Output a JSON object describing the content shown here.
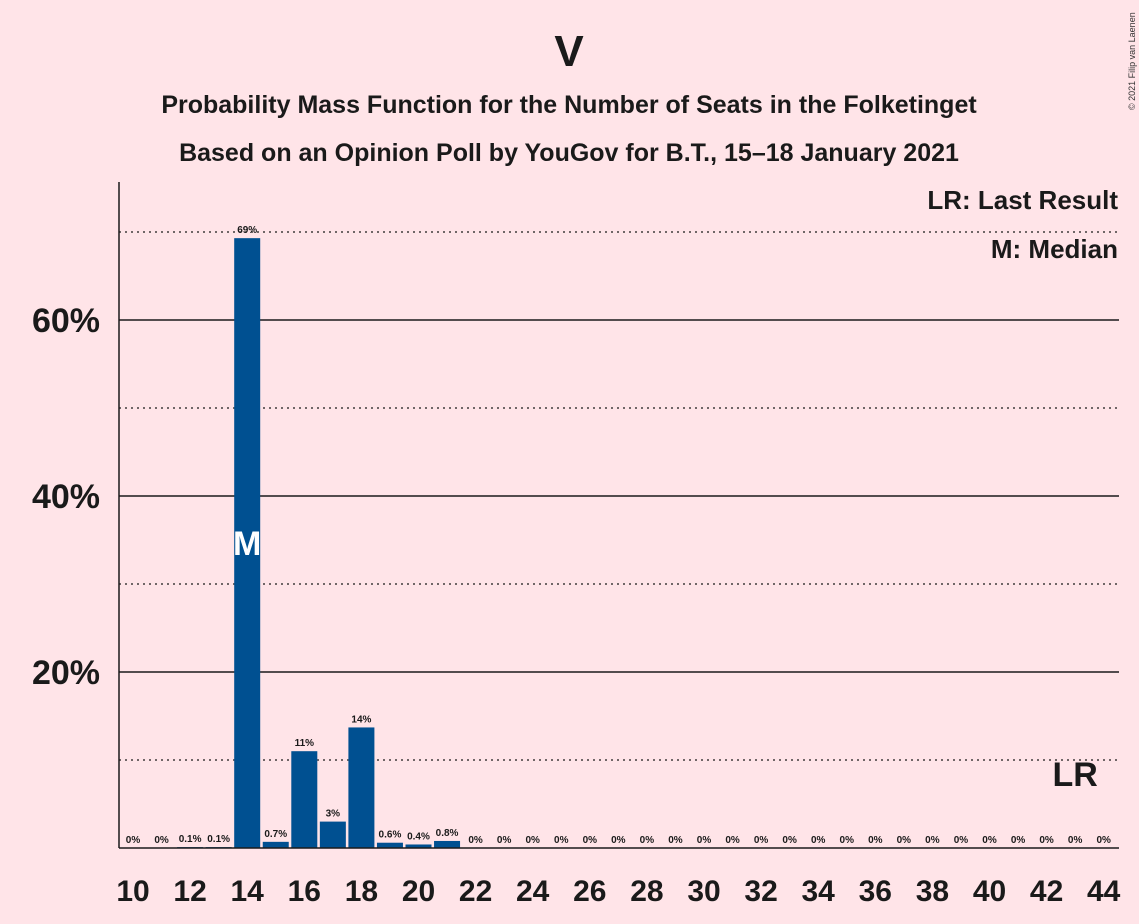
{
  "colors": {
    "background": "#FFE4E8",
    "bar": "#005091",
    "text": "#1a1a1a"
  },
  "chart_data": {
    "type": "bar",
    "title": "V",
    "subtitle_1": "Probability Mass Function for the Number of Seats in the Folketinget",
    "subtitle_2": "Based on an Opinion Poll by YouGov for B.T., 15–18 January 2021",
    "copyright": "© 2021 Filip van Laenen",
    "xlabel": "",
    "ylabel": "",
    "ylim": [
      0,
      75
    ],
    "yticks": [
      {
        "value": 20,
        "label": "20%"
      },
      {
        "value": 40,
        "label": "40%"
      },
      {
        "value": 60,
        "label": "60%"
      }
    ],
    "ygrid_minor": [
      10,
      30,
      50,
      70
    ],
    "xticks": [
      "10",
      "12",
      "14",
      "16",
      "18",
      "20",
      "22",
      "24",
      "26",
      "28",
      "30",
      "32",
      "34",
      "36",
      "38",
      "40",
      "42",
      "44"
    ],
    "categories": [
      10,
      11,
      12,
      13,
      14,
      15,
      16,
      17,
      18,
      19,
      20,
      21,
      22,
      23,
      24,
      25,
      26,
      27,
      28,
      29,
      30,
      31,
      32,
      33,
      34,
      35,
      36,
      37,
      38,
      39,
      40,
      41,
      42,
      43,
      44
    ],
    "values": [
      0,
      0,
      0.1,
      0.1,
      69.3,
      0.7,
      11,
      3,
      13.7,
      0.6,
      0.4,
      0.8,
      0,
      0,
      0,
      0,
      0,
      0,
      0,
      0,
      0,
      0,
      0,
      0,
      0,
      0,
      0,
      0,
      0,
      0,
      0,
      0,
      0,
      0,
      0
    ],
    "labels": [
      "0%",
      "0%",
      "0.1%",
      "0.1%",
      "69%",
      "0.7%",
      "11%",
      "3%",
      "14%",
      "0.6%",
      "0.4%",
      "0.8%",
      "0%",
      "0%",
      "0%",
      "0%",
      "0%",
      "0%",
      "0%",
      "0%",
      "0%",
      "0%",
      "0%",
      "0%",
      "0%",
      "0%",
      "0%",
      "0%",
      "0%",
      "0%",
      "0%",
      "0%",
      "0%",
      "0%",
      "0%"
    ],
    "median": {
      "seat": 14,
      "marker": "M"
    },
    "last_result": {
      "seat": 43,
      "marker": "LR"
    },
    "legend": [
      "LR: Last Result",
      "M: Median"
    ],
    "legend_position": "top-right",
    "grid": true
  }
}
